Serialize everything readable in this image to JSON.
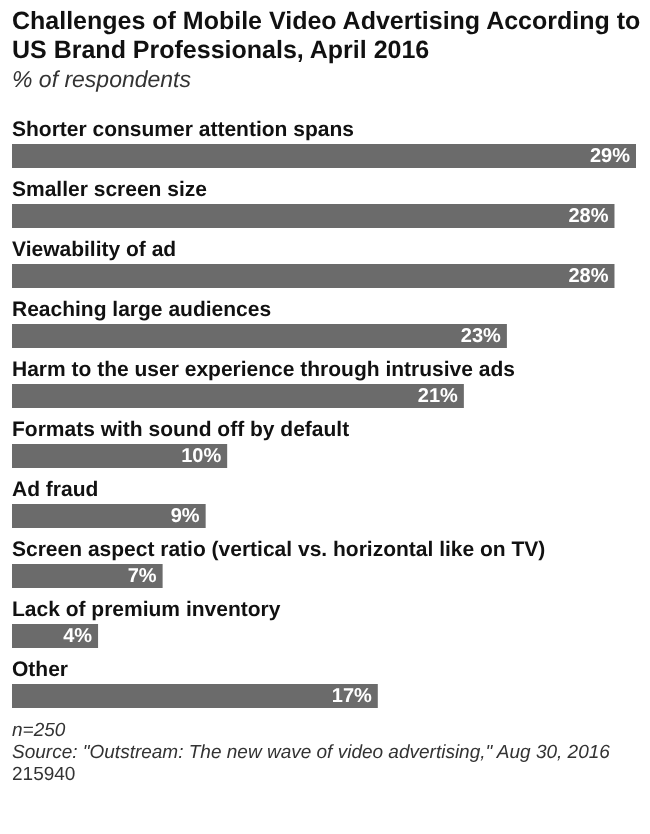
{
  "chart_data": {
    "type": "bar",
    "orientation": "horizontal",
    "title": "Challenges of Mobile Video Advertising According to US Brand Professionals, April 2016",
    "subtitle": "% of respondents",
    "categories": [
      "Shorter consumer attention spans",
      "Smaller screen size",
      "Viewability of ad",
      "Reaching large audiences",
      "Harm to the user experience through intrusive ads",
      "Formats with sound off by default",
      "Ad fraud",
      "Screen aspect ratio (vertical vs. horizontal like on TV)",
      "Lack of premium inventory",
      "Other"
    ],
    "values": [
      29,
      28,
      28,
      23,
      21,
      10,
      9,
      7,
      4,
      17
    ],
    "value_labels": [
      "29%",
      "28%",
      "28%",
      "23%",
      "21%",
      "10%",
      "9%",
      "7%",
      "4%",
      "17%"
    ],
    "color": "#6b6b6b",
    "annotations": [
      "n=250",
      "Source: \"Outstream: The new wave of video advertising,\" Aug 30, 2016",
      "215940"
    ]
  }
}
